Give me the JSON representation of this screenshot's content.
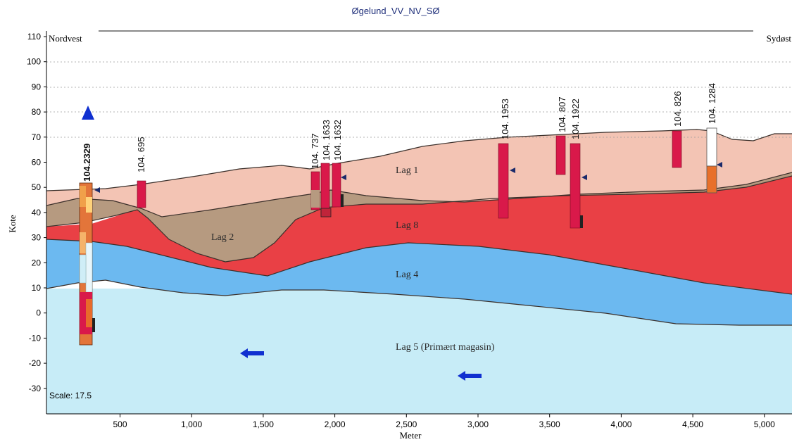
{
  "title": "Øgelund_VV_NV_SØ",
  "direction_left": "Nordvest",
  "direction_right": "Sydøst",
  "ylabel": "Kote",
  "xlabel": "Meter",
  "scale_text": "Scale: 17.5",
  "y_ticks": [
    "110",
    "100",
    "90",
    "80",
    "70",
    "60",
    "50",
    "40",
    "30",
    "20",
    "10",
    "0",
    "-10",
    "-20",
    "-30"
  ],
  "x_ticks": [
    "500",
    "1,000",
    "1,500",
    "2,000",
    "2,500",
    "3,000",
    "3,500",
    "4,000",
    "4,500",
    "5,000"
  ],
  "layers": {
    "lag1": "Lag 1",
    "lag2": "Lag 2",
    "lag3": "Lag 8",
    "lag4": "Lag 4",
    "lag5": "Lag 5 (Primært magasin)"
  },
  "boreholes": [
    {
      "label": "104.2329",
      "x_m": 305
    },
    {
      "label": "104. 695",
      "x_m": 690
    },
    {
      "label": "104. 737",
      "x_m": 1890
    },
    {
      "label": "104. 1633",
      "x_m": 1950
    },
    {
      "label": "104. 1632",
      "x_m": 2010
    },
    {
      "label": "104. 1953",
      "x_m": 3180
    },
    {
      "label": "104. 807",
      "x_m": 3580
    },
    {
      "label": "104. 1922",
      "x_m": 3680
    },
    {
      "label": "104. 826",
      "x_m": 4380
    },
    {
      "label": "104. 1284",
      "x_m": 4620
    }
  ],
  "colors": {
    "lag1": "#f3c4b4",
    "lag2": "#b69a80",
    "lag3": "#e94045",
    "lag4": "#6cb9f0",
    "lag5": "#c7ecf7",
    "borehole": "#d9194a",
    "arrow": "#1030d0",
    "title": "#1f2f7a"
  }
}
